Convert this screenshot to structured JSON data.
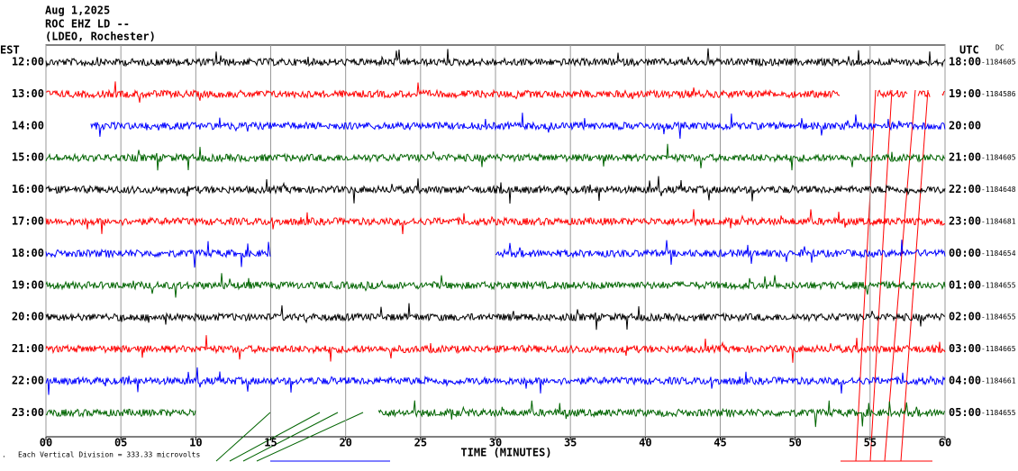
{
  "chart_data": {
    "type": "helicorder",
    "title": [
      "Aug 1,2025",
      "ROC EHZ LD --",
      "(LDEO, Rochester)"
    ],
    "left_axis_label": "EST",
    "right_axis_label": "UTC",
    "offset_label": "DC",
    "xlabel": "TIME (MINUTES)",
    "scale_note": "Each Vertical Division =  333.33 microvolts",
    "xlim": [
      0,
      60
    ],
    "xticks": [
      {
        "value": 0,
        "label": "00"
      },
      {
        "value": 5,
        "label": "05"
      },
      10,
      15,
      20,
      25,
      30,
      35,
      40,
      45,
      50,
      55,
      60
    ],
    "grid": true,
    "rows": [
      {
        "left": "12:00",
        "right": "18:00",
        "dc": "-1184605",
        "color": "#000000",
        "segments": [
          [
            0,
            60
          ]
        ]
      },
      {
        "left": "13:00",
        "right": "19:00",
        "dc": "-1184586",
        "color": "#ff0000",
        "segments": [
          [
            0,
            53
          ],
          [
            55.5,
            57.5
          ],
          [
            58.2,
            59
          ],
          [
            59.8,
            60
          ]
        ]
      },
      {
        "left": "14:00",
        "right": "20:00",
        "dc": "",
        "color": "#0000ff",
        "segments": [
          [
            3,
            60
          ]
        ]
      },
      {
        "left": "15:00",
        "right": "21:00",
        "dc": "-1184605",
        "color": "#006400",
        "segments": [
          [
            0,
            60
          ]
        ]
      },
      {
        "left": "16:00",
        "right": "22:00",
        "dc": "-1184648",
        "color": "#000000",
        "segments": [
          [
            0,
            60
          ]
        ]
      },
      {
        "left": "17:00",
        "right": "23:00",
        "dc": "-1184681",
        "color": "#ff0000",
        "segments": [
          [
            0,
            60
          ]
        ]
      },
      {
        "left": "18:00",
        "right": "00:00",
        "dc": "-1184654",
        "color": "#0000ff",
        "segments": [
          [
            0,
            15
          ],
          [
            30,
            60
          ]
        ]
      },
      {
        "left": "19:00",
        "right": "01:00",
        "dc": "-1184655",
        "color": "#006400",
        "segments": [
          [
            0,
            60
          ]
        ]
      },
      {
        "left": "20:00",
        "right": "02:00",
        "dc": "-1184655",
        "color": "#000000",
        "segments": [
          [
            0,
            60
          ]
        ]
      },
      {
        "left": "21:00",
        "right": "03:00",
        "dc": "-1184665",
        "color": "#ff0000",
        "segments": [
          [
            0,
            60
          ]
        ]
      },
      {
        "left": "22:00",
        "right": "04:00",
        "dc": "-1184661",
        "color": "#0000ff",
        "segments": [
          [
            0,
            60
          ]
        ]
      },
      {
        "left": "23:00",
        "right": "05:00",
        "dc": "-1184655",
        "color": "#006400",
        "segments": [
          [
            0,
            10
          ],
          [
            22.2,
            60
          ]
        ]
      }
    ]
  }
}
